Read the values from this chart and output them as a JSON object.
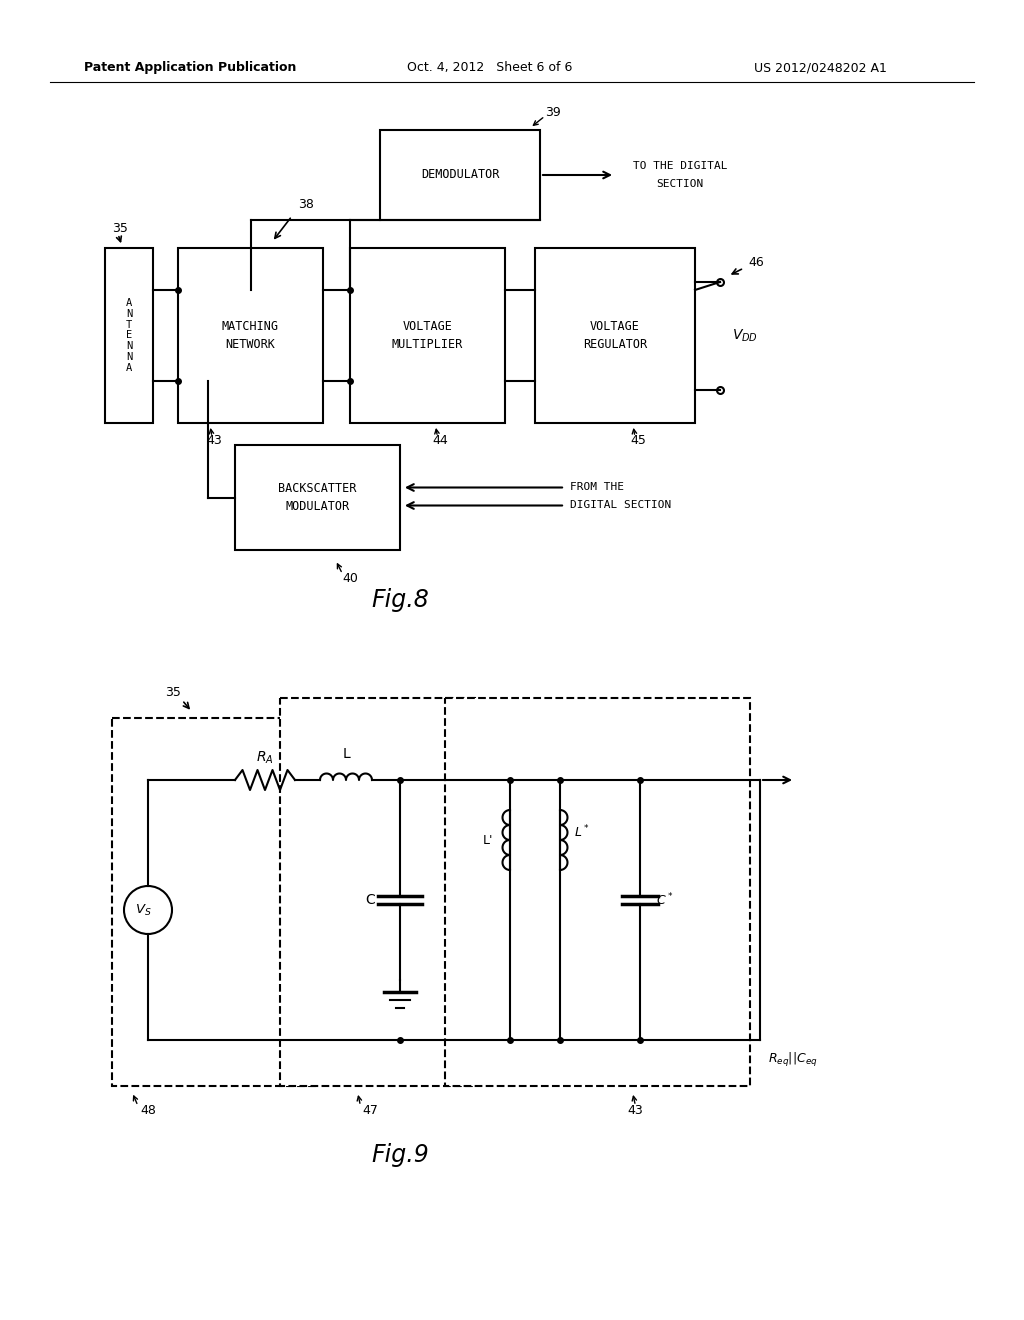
{
  "background_color": "#ffffff",
  "header_left": "Patent Application Publication",
  "header_center": "Oct. 4, 2012   Sheet 6 of 6",
  "header_right": "US 2012/0248202 A1",
  "fig8_label": "Fig.8",
  "fig9_label": "Fig.9",
  "page_width": 10.24,
  "page_height": 13.2
}
